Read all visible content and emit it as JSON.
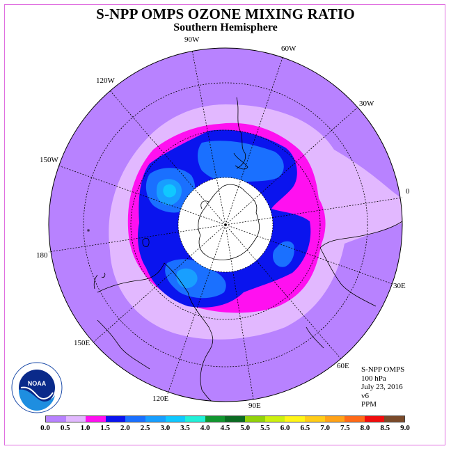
{
  "title": "S-NPP OMPS OZONE MIXING RATIO",
  "subtitle": "Southern Hemisphere",
  "longitude_labels": [
    "90W",
    "60W",
    "30W",
    "0",
    "30E",
    "60E",
    "90E",
    "120E",
    "150E",
    "180",
    "150W",
    "120W"
  ],
  "info": {
    "instrument": "S-NPP OMPS",
    "level": "100 hPa",
    "date": "July 23, 2016",
    "version": "v6",
    "units": "PPM"
  },
  "logo": {
    "text": "NOAA",
    "ring_text": "NATIONAL OCEANIC AND ATMOSPHERIC ADMINISTRATION · U.S. DEPARTMENT OF COMMERCE"
  },
  "colorbar": {
    "ticks": [
      "0.0",
      "0.5",
      "1.0",
      "1.5",
      "2.0",
      "2.5",
      "3.0",
      "3.5",
      "4.0",
      "4.5",
      "5.0",
      "5.5",
      "6.0",
      "6.5",
      "7.0",
      "7.5",
      "8.0",
      "8.5",
      "9.0"
    ],
    "colors": [
      "#b882ff",
      "#e2b8ff",
      "#ff10f0",
      "#0a14ee",
      "#1a70ff",
      "#189fff",
      "#10c8ff",
      "#22f0d8",
      "#119630",
      "#0b6b22",
      "#92d20a",
      "#ccf010",
      "#fff518",
      "#ffcc18",
      "#ffa218",
      "#ff6a18",
      "#f00d0d",
      "#7a4a2a"
    ]
  },
  "legend_colors": {
    "background_ozone": "#b882ff",
    "no_data_polar_night": "#ffffff"
  }
}
